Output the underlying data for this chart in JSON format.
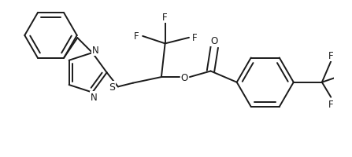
{
  "background_color": "#ffffff",
  "line_color": "#1a1a1a",
  "line_width": 1.4,
  "figsize": [
    4.47,
    2.01
  ],
  "dpi": 100,
  "xlim": [
    0,
    447
  ],
  "ylim": [
    0,
    201
  ]
}
